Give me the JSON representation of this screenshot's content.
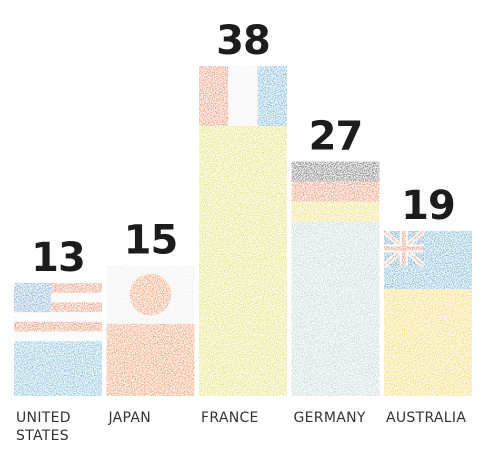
{
  "chart_data": {
    "type": "bar",
    "categories": [
      "UNITED STATES",
      "JAPAN",
      "FRANCE",
      "GERMANY",
      "AUSTRALIA"
    ],
    "category_lines": [
      [
        "UNITED",
        "STATES"
      ],
      [
        "JAPAN"
      ],
      [
        "FRANCE"
      ],
      [
        "GERMANY"
      ],
      [
        "AUSTRALIA"
      ]
    ],
    "values": [
      13,
      15,
      38,
      27,
      19
    ],
    "value_labels": [
      "13",
      "15",
      "38",
      "27",
      "19"
    ],
    "title": "",
    "xlabel": "",
    "ylabel": "",
    "ylim": [
      0,
      38
    ],
    "grid": false,
    "legend": "none",
    "flags": [
      "us-flag",
      "japan-flag",
      "france-flag",
      "germany-flag",
      "australia-flag"
    ],
    "body_colors": [
      "#3a9bc9",
      "#e8651f",
      "#d4d22a",
      "#a7c2c1",
      "#f2c416"
    ]
  }
}
